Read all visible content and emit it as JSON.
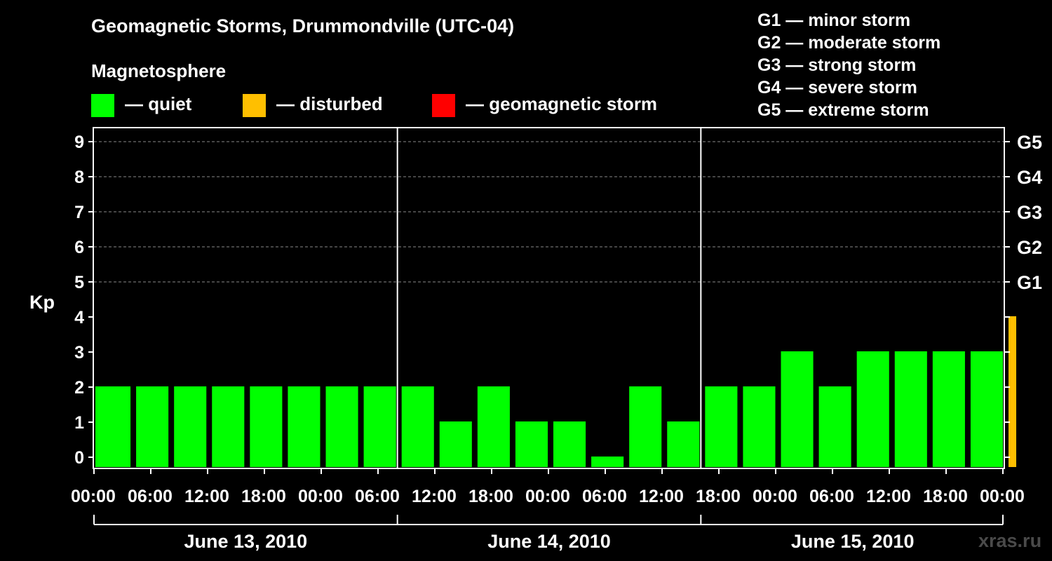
{
  "chart_data": {
    "type": "bar",
    "title": "Geomagnetic Storms, Drummondville (UTC-04)",
    "subtitle": "Magnetosphere",
    "ylabel": "Kp",
    "ylim": [
      0,
      9
    ],
    "yticks": [
      "0",
      "1",
      "2",
      "3",
      "4",
      "5",
      "6",
      "7",
      "8",
      "9"
    ],
    "g_axis_labels": [
      {
        "kp": 5,
        "label": "G1"
      },
      {
        "kp": 6,
        "label": "G2"
      },
      {
        "kp": 7,
        "label": "G3"
      },
      {
        "kp": 8,
        "label": "G4"
      },
      {
        "kp": 9,
        "label": "G5"
      }
    ],
    "x_tick_labels": [
      "00:00",
      "06:00",
      "12:00",
      "18:00",
      "00:00",
      "06:00",
      "12:00",
      "18:00",
      "00:00",
      "06:00",
      "12:00",
      "18:00",
      "00:00",
      "06:00",
      "12:00",
      "18:00",
      "00:00"
    ],
    "dates": [
      "June 13, 2010",
      "June 14, 2010",
      "June 15, 2010"
    ],
    "legend": [
      {
        "label": "— quiet",
        "color": "#00ff00"
      },
      {
        "label": "— disturbed",
        "color": "#ffbf00"
      },
      {
        "label": "— geomagnetic storm",
        "color": "#ff0000"
      }
    ],
    "storm_scale": [
      "G1 — minor storm",
      "G2 — moderate storm",
      "G3 — strong storm",
      "G4 — severe storm",
      "G5 — extreme storm"
    ],
    "bars": [
      {
        "start_hour": 0,
        "end_hour": 3,
        "kp": 2
      },
      {
        "start_hour": 3,
        "end_hour": 6,
        "kp": 2
      },
      {
        "start_hour": 6,
        "end_hour": 9,
        "kp": 2
      },
      {
        "start_hour": 9,
        "end_hour": 12,
        "kp": 2
      },
      {
        "start_hour": 12,
        "end_hour": 15,
        "kp": 2
      },
      {
        "start_hour": 15,
        "end_hour": 18,
        "kp": 2
      },
      {
        "start_hour": 18,
        "end_hour": 21,
        "kp": 2
      },
      {
        "start_hour": 21,
        "end_hour": 24,
        "kp": 2
      },
      {
        "start_hour": 24,
        "end_hour": 27,
        "kp": 2
      },
      {
        "start_hour": 27,
        "end_hour": 30,
        "kp": 1
      },
      {
        "start_hour": 30,
        "end_hour": 33,
        "kp": 2
      },
      {
        "start_hour": 33,
        "end_hour": 36,
        "kp": 1
      },
      {
        "start_hour": 36,
        "end_hour": 39,
        "kp": 1
      },
      {
        "start_hour": 39,
        "end_hour": 42,
        "kp": 0
      },
      {
        "start_hour": 42,
        "end_hour": 45,
        "kp": 2
      },
      {
        "start_hour": 45,
        "end_hour": 48,
        "kp": 1
      },
      {
        "start_hour": 48,
        "end_hour": 51,
        "kp": 2
      },
      {
        "start_hour": 51,
        "end_hour": 54,
        "kp": 2
      },
      {
        "start_hour": 54,
        "end_hour": 57,
        "kp": 3
      },
      {
        "start_hour": 57,
        "end_hour": 60,
        "kp": 2
      },
      {
        "start_hour": 60,
        "end_hour": 63,
        "kp": 3
      },
      {
        "start_hour": 63,
        "end_hour": 66,
        "kp": 3
      },
      {
        "start_hour": 66,
        "end_hour": 69,
        "kp": 3
      },
      {
        "start_hour": 69,
        "end_hour": 72,
        "kp": 3
      },
      {
        "start_hour": 72,
        "end_hour": 72.33,
        "kp": 4
      }
    ],
    "colors": {
      "quiet": "#00ff00",
      "disturbed": "#ffbf00",
      "storm": "#ff0000"
    },
    "grid": "dashed horizontal at each Kp level 5-9"
  },
  "watermark": "xras.ru"
}
